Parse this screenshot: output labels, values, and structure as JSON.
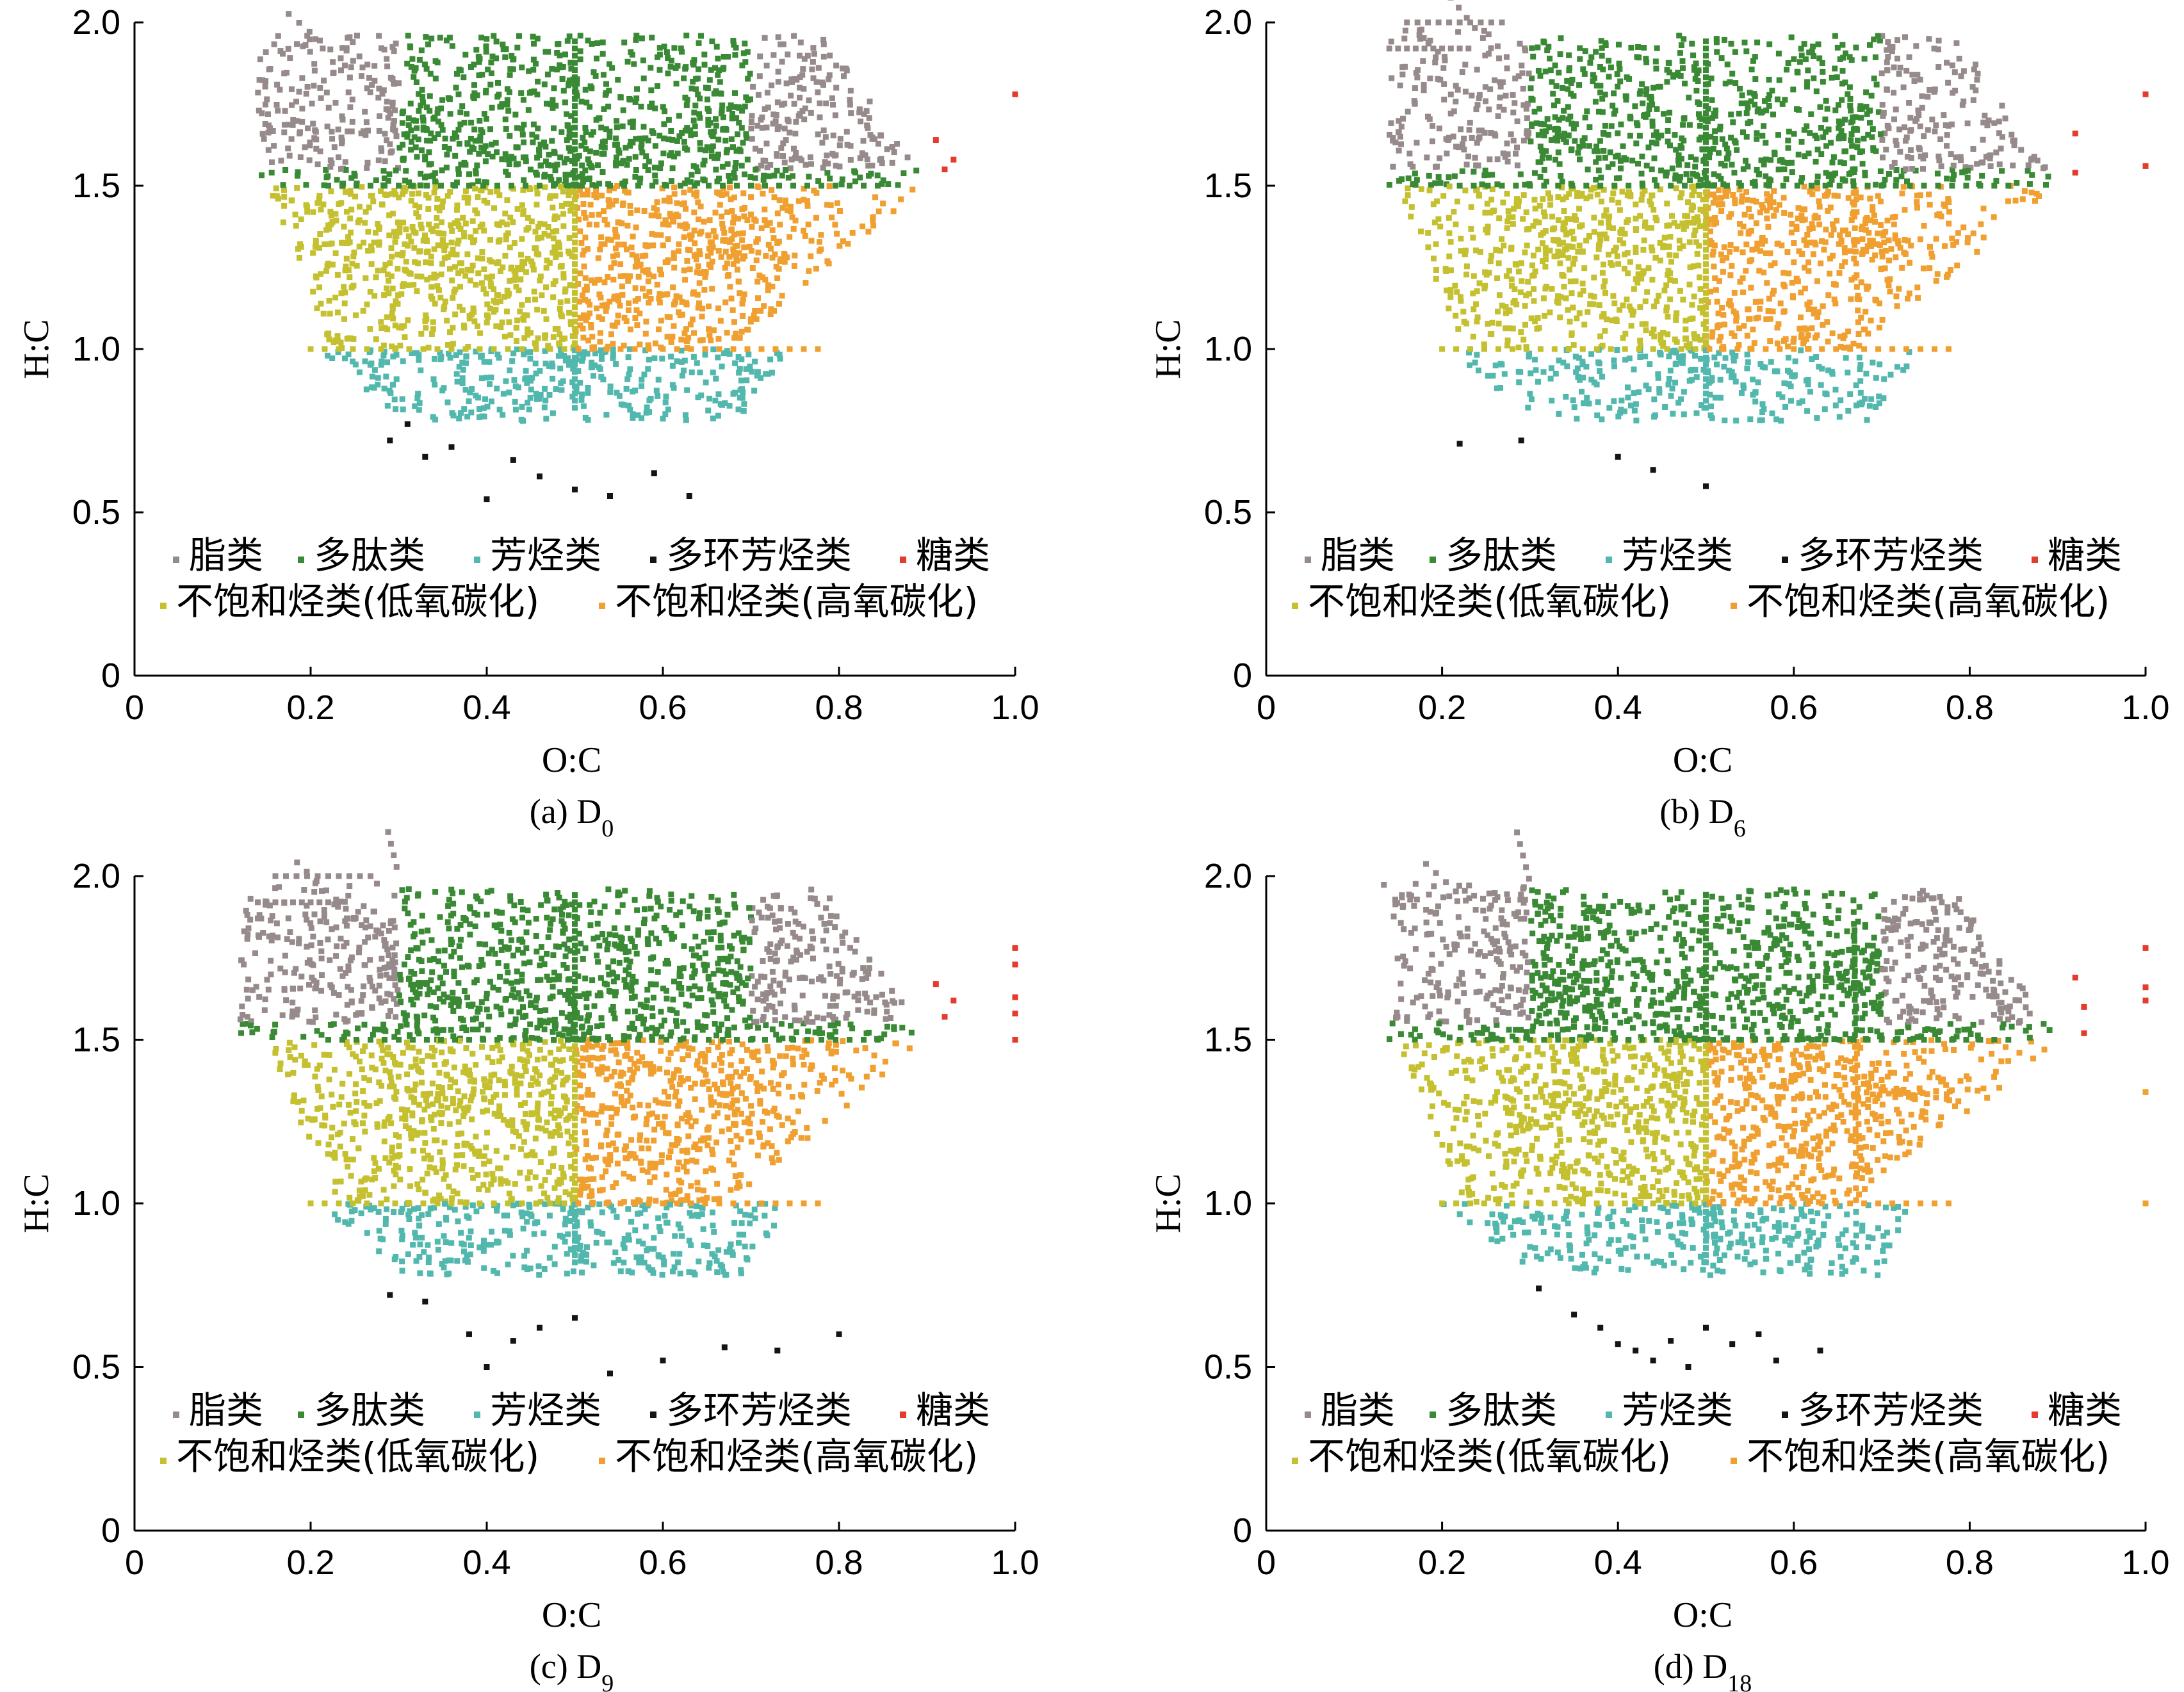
{
  "colors": {
    "lipid": "#968a8a",
    "peptide": "#3a8a35",
    "aromatic": "#52b8ad",
    "polycyclic": "#141414",
    "sugar": "#e53a2e",
    "unsat_low": "#c4c030",
    "unsat_high": "#f0a030"
  },
  "legend": {
    "lipid": "脂类",
    "peptide": "多肽类",
    "aromatic": "芳烃类",
    "polycyclic": "多环芳烃类",
    "sugar": "糖类",
    "unsat_low": "不饱和烃类(低氧碳化)",
    "unsat_high": "不饱和烃类(高氧碳化)"
  },
  "axes": {
    "xlabel": "O:C",
    "ylabel": "H:C",
    "xticks": [
      "0",
      "0.2",
      "0.4",
      "0.6",
      "0.8",
      "1.0"
    ],
    "yticks": [
      "0",
      "0.5",
      "1.0",
      "1.5",
      "2.0"
    ]
  },
  "panels": [
    {
      "caption_prefix": "(a) D",
      "caption_sub": "0"
    },
    {
      "caption_prefix": "(b) D",
      "caption_sub": "6"
    },
    {
      "caption_prefix": "(c) D",
      "caption_sub": "9"
    },
    {
      "caption_prefix": "(d) D",
      "caption_sub": "18"
    }
  ],
  "chart_data": [
    {
      "type": "scatter",
      "xlabel": "O:C",
      "ylabel": "H:C",
      "xlim": [
        0,
        1.0
      ],
      "ylim": [
        0,
        2.0
      ],
      "series_names": [
        "脂类",
        "多肽类",
        "芳烃类",
        "多环芳烃类",
        "糖类",
        "不饱和烃类(低氧碳化)",
        "不饱和烃类(高氧碳化)"
      ],
      "sample_points": {
        "sugar": [
          [
            1.0,
            1.78
          ],
          [
            0.91,
            1.64
          ],
          [
            0.93,
            1.58
          ],
          [
            0.92,
            1.55
          ]
        ],
        "polycyclic": [
          [
            0.29,
            0.72
          ],
          [
            0.31,
            0.77
          ],
          [
            0.33,
            0.67
          ],
          [
            0.36,
            0.7
          ],
          [
            0.4,
            0.54
          ],
          [
            0.43,
            0.66
          ],
          [
            0.46,
            0.61
          ],
          [
            0.5,
            0.57
          ],
          [
            0.54,
            0.55
          ],
          [
            0.59,
            0.62
          ],
          [
            0.63,
            0.55
          ]
        ]
      }
    },
    {
      "type": "scatter",
      "xlabel": "O:C",
      "ylabel": "H:C",
      "xlim": [
        0,
        1.0
      ],
      "ylim": [
        0,
        2.0
      ],
      "series_names": [
        "脂类",
        "多肽类",
        "芳烃类",
        "多环芳烃类",
        "糖类",
        "不饱和烃类(低氧碳化)",
        "不饱和烃类(高氧碳化)"
      ],
      "sample_points": {
        "sugar": [
          [
            1.0,
            1.78
          ],
          [
            1.0,
            1.56
          ],
          [
            0.92,
            1.66
          ],
          [
            0.92,
            1.54
          ]
        ],
        "polycyclic": [
          [
            0.22,
            0.71
          ],
          [
            0.29,
            0.72
          ],
          [
            0.4,
            0.67
          ],
          [
            0.44,
            0.63
          ],
          [
            0.5,
            0.58
          ]
        ]
      }
    },
    {
      "type": "scatter",
      "xlabel": "O:C",
      "ylabel": "H:C",
      "xlim": [
        0,
        1.0
      ],
      "ylim": [
        0,
        2.0
      ],
      "series_names": [
        "脂类",
        "多肽类",
        "芳烃类",
        "多环芳烃类",
        "糖类",
        "不饱和烃类(低氧碳化)",
        "不饱和烃类(高氧碳化)"
      ],
      "sample_points": {
        "sugar": [
          [
            1.0,
            1.78
          ],
          [
            1.0,
            1.73
          ],
          [
            1.0,
            1.63
          ],
          [
            1.0,
            1.58
          ],
          [
            1.0,
            1.5
          ],
          [
            0.93,
            1.62
          ],
          [
            0.92,
            1.57
          ],
          [
            0.91,
            1.67
          ]
        ],
        "polycyclic": [
          [
            0.29,
            0.72
          ],
          [
            0.33,
            0.7
          ],
          [
            0.38,
            0.6
          ],
          [
            0.4,
            0.5
          ],
          [
            0.43,
            0.58
          ],
          [
            0.46,
            0.62
          ],
          [
            0.5,
            0.65
          ],
          [
            0.54,
            0.48
          ],
          [
            0.6,
            0.52
          ],
          [
            0.67,
            0.56
          ],
          [
            0.73,
            0.55
          ],
          [
            0.8,
            0.6
          ]
        ]
      }
    },
    {
      "type": "scatter",
      "xlabel": "O:C",
      "ylabel": "H:C",
      "xlim": [
        0,
        1.0
      ],
      "ylim": [
        0,
        2.0
      ],
      "series_names": [
        "脂类",
        "多肽类",
        "芳烃类",
        "多环芳烃类",
        "糖类",
        "不饱和烃类(低氧碳化)",
        "不饱和烃类(高氧碳化)"
      ],
      "sample_points": {
        "sugar": [
          [
            1.0,
            1.78
          ],
          [
            1.0,
            1.66
          ],
          [
            1.0,
            1.62
          ],
          [
            0.92,
            1.69
          ],
          [
            0.93,
            1.6
          ],
          [
            0.93,
            1.52
          ]
        ],
        "polycyclic": [
          [
            0.31,
            0.74
          ],
          [
            0.35,
            0.66
          ],
          [
            0.38,
            0.62
          ],
          [
            0.4,
            0.57
          ],
          [
            0.42,
            0.55
          ],
          [
            0.44,
            0.52
          ],
          [
            0.46,
            0.58
          ],
          [
            0.48,
            0.5
          ],
          [
            0.5,
            0.62
          ],
          [
            0.53,
            0.57
          ],
          [
            0.56,
            0.6
          ],
          [
            0.58,
            0.52
          ],
          [
            0.63,
            0.55
          ]
        ],
        "unsat_high": [
          [
            1.0,
            1.0
          ],
          [
            1.0,
            1.34
          ]
        ]
      }
    }
  ]
}
